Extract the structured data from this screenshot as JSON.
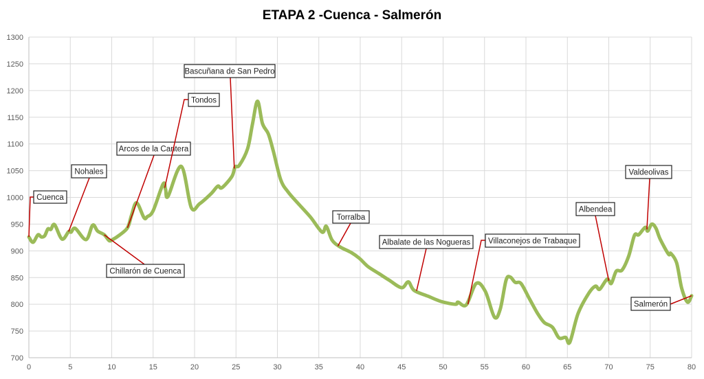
{
  "chart_data": {
    "type": "line",
    "title": "ETAPA 2 -Cuenca - Salmerón",
    "xlabel": "",
    "ylabel": "",
    "xlim": [
      0,
      80
    ],
    "ylim": [
      700,
      1300
    ],
    "xticks": [
      0,
      5,
      10,
      15,
      20,
      25,
      30,
      35,
      40,
      45,
      50,
      55,
      60,
      65,
      70,
      75,
      80
    ],
    "yticks": [
      700,
      750,
      800,
      850,
      900,
      950,
      1000,
      1050,
      1100,
      1150,
      1200,
      1250,
      1300
    ],
    "grid": true,
    "line_color": "#9BBB59",
    "leader_color": "#C00000",
    "x": [
      0,
      0.5,
      1.1,
      1.5,
      1.9,
      2.3,
      2.65,
      3.1,
      4.0,
      4.8,
      5.1,
      5.6,
      6.9,
      7.7,
      8.3,
      9.1,
      9.7,
      10.1,
      10.9,
      11.9,
      12.4,
      13.0,
      13.9,
      14.3,
      15.0,
      16.2,
      16.5,
      16.8,
      18.4,
      19.6,
      20.6,
      22.0,
      22.8,
      23.3,
      24.5,
      24.9,
      25.4,
      26.4,
      27.0,
      27.6,
      28.2,
      28.9,
      29.5,
      30.4,
      31.3,
      32.6,
      34.0,
      35.4,
      35.9,
      36.6,
      37.6,
      38.9,
      39.9,
      40.9,
      42.2,
      43.5,
      45.0,
      45.8,
      46.5,
      48.2,
      49.8,
      51.5,
      51.8,
      52.8,
      54.0,
      55.1,
      56.2,
      56.9,
      57.6,
      58.1,
      58.7,
      59.4,
      60.4,
      61.4,
      62.2,
      63.2,
      64.0,
      64.8,
      65.3,
      66.3,
      67.6,
      68.4,
      68.9,
      69.8,
      70.3,
      70.9,
      71.6,
      72.4,
      73.1,
      73.6,
      74.4,
      74.7,
      75.2,
      75.7,
      76.2,
      77.2,
      77.5,
      78.2,
      78.8,
      79.5,
      80.0
    ],
    "y": [
      926,
      916,
      930,
      926,
      928,
      941,
      940,
      949,
      922,
      936,
      935,
      942,
      921,
      948,
      937,
      930,
      919,
      921,
      929,
      943,
      967,
      990,
      962,
      964,
      975,
      1025,
      1015,
      1002,
      1058,
      981,
      988,
      1007,
      1021,
      1018,
      1039,
      1057,
      1060,
      1091,
      1138,
      1180,
      1138,
      1119,
      1087,
      1033,
      1010,
      987,
      963,
      935,
      946,
      920,
      907,
      897,
      886,
      871,
      858,
      845,
      831,
      842,
      826,
      815,
      805,
      800,
      804,
      799,
      839,
      824,
      776,
      791,
      845,
      851,
      841,
      839,
      811,
      783,
      766,
      757,
      737,
      738,
      729,
      783,
      821,
      834,
      828,
      847,
      839,
      862,
      864,
      890,
      929,
      930,
      944,
      937,
      950,
      942,
      922,
      894,
      895,
      877,
      830,
      804,
      816
    ],
    "annotations": [
      {
        "label": "Cuenca",
        "x": 0,
        "y": 926
      },
      {
        "label": "Nohales",
        "x": 4.8,
        "y": 936
      },
      {
        "label": "Chillarón de Cuenca",
        "x": 9.1,
        "y": 930
      },
      {
        "label": "Arcos de la Cantera",
        "x": 11.9,
        "y": 943
      },
      {
        "label": "Tondos",
        "x": 16.4,
        "y": 1018
      },
      {
        "label": "Bascuñana de San Pedro",
        "x": 24.8,
        "y": 1054
      },
      {
        "label": "Torralba",
        "x": 37.3,
        "y": 909
      },
      {
        "label": "Albalate de las Nogueras",
        "x": 46.8,
        "y": 825
      },
      {
        "label": "Villaconejos de Trabaque",
        "x": 53.0,
        "y": 800
      },
      {
        "label": "Albendea",
        "x": 70.0,
        "y": 844
      },
      {
        "label": "Valdeolivas",
        "x": 74.6,
        "y": 940
      },
      {
        "label": "Salmerón",
        "x": 80.0,
        "y": 816
      }
    ]
  }
}
